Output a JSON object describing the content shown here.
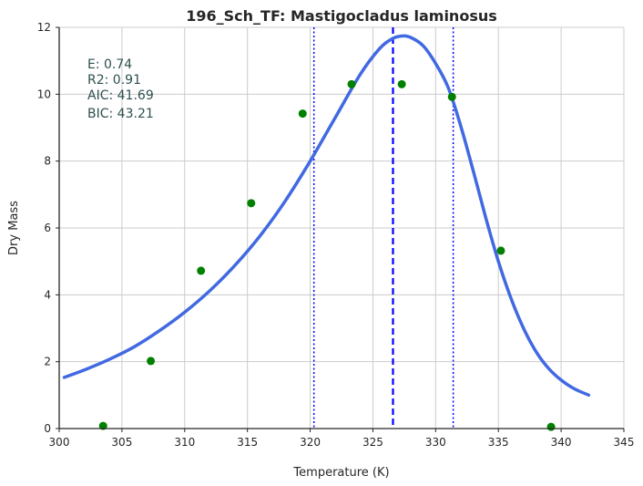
{
  "chart_data": {
    "type": "scatter",
    "title": "196_Sch_TF: Mastigocladus laminosus",
    "xlabel": "Temperature (K)",
    "ylabel": "Dry Mass",
    "xlim": [
      300,
      345
    ],
    "ylim": [
      0,
      12
    ],
    "xticks": [
      "300",
      "305",
      "310",
      "315",
      "320",
      "325",
      "330",
      "335",
      "340",
      "345"
    ],
    "yticks": [
      "0",
      "2",
      "4",
      "6",
      "8",
      "10",
      "12"
    ],
    "grid": true,
    "points": [
      {
        "x": 303.5,
        "y": 0.08
      },
      {
        "x": 307.3,
        "y": 2.02
      },
      {
        "x": 311.3,
        "y": 4.72
      },
      {
        "x": 315.3,
        "y": 6.74
      },
      {
        "x": 319.4,
        "y": 9.42
      },
      {
        "x": 323.3,
        "y": 10.3
      },
      {
        "x": 327.3,
        "y": 10.3
      },
      {
        "x": 331.3,
        "y": 9.92
      },
      {
        "x": 335.2,
        "y": 5.32
      },
      {
        "x": 339.2,
        "y": 0.05
      }
    ],
    "fit_curve": [
      [
        300.4,
        1.53
      ],
      [
        302,
        1.75
      ],
      [
        304,
        2.07
      ],
      [
        306,
        2.45
      ],
      [
        308,
        2.93
      ],
      [
        310,
        3.48
      ],
      [
        312,
        4.12
      ],
      [
        314,
        4.88
      ],
      [
        316,
        5.76
      ],
      [
        318,
        6.8
      ],
      [
        320,
        8.0
      ],
      [
        322,
        9.3
      ],
      [
        324,
        10.6
      ],
      [
        325.5,
        11.35
      ],
      [
        326.5,
        11.65
      ],
      [
        327.3,
        11.74
      ],
      [
        328,
        11.7
      ],
      [
        329,
        11.45
      ],
      [
        330,
        10.92
      ],
      [
        331,
        10.2
      ],
      [
        332,
        9.05
      ],
      [
        333,
        7.7
      ],
      [
        334,
        6.3
      ],
      [
        335,
        5.0
      ],
      [
        336,
        3.9
      ],
      [
        337,
        3.0
      ],
      [
        338,
        2.3
      ],
      [
        339,
        1.8
      ],
      [
        340,
        1.45
      ],
      [
        341,
        1.2
      ],
      [
        342.2,
        1.0
      ]
    ],
    "peak_line_x": 326.6,
    "bound_lines_x": [
      320.3,
      331.4
    ],
    "colors": {
      "curve": "#4169e1",
      "points": "#008000",
      "peak_line": "#0000ff",
      "bound_lines": "#0000ff",
      "grid": "#cccccc",
      "stats_text": "#2f4f4f"
    },
    "stats": {
      "E": "E:  0.74",
      "R2": "R2:  0.91",
      "AIC": "AIC: 41.69",
      "BIC": "BIC: 43.21"
    }
  }
}
